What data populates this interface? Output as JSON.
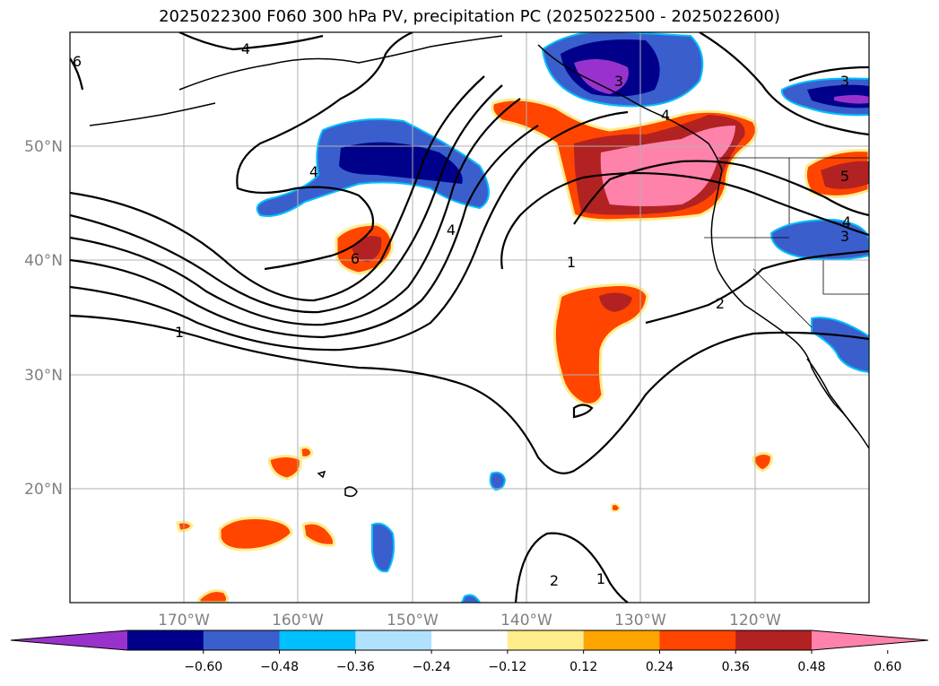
{
  "title": "2025022300 F060 300 hPa PV, precipitation PC (2025022500 - 2025022600)",
  "lat_labels": [
    "50°N",
    "40°N",
    "30°N",
    "20°N"
  ],
  "lon_labels": [
    "170°W",
    "160°W",
    "150°W",
    "140°W",
    "130°W",
    "120°W"
  ],
  "colorbar": {
    "ticks": [
      "−0.60",
      "−0.48",
      "−0.36",
      "−0.24",
      "−0.12",
      "0.12",
      "0.24",
      "0.36",
      "0.48",
      "0.60"
    ],
    "colors": [
      "#9932cc",
      "#00008b",
      "#3a5fcd",
      "#00bfff",
      "#b0e2ff",
      "#ffffff",
      "#ffec8b",
      "#ffa500",
      "#ff4500",
      "#b22222",
      "#ff82ab"
    ]
  },
  "contour_labels": [
    "4",
    "6",
    "3",
    "5",
    "4",
    "3",
    "4",
    "6",
    "1",
    "4",
    "1",
    "2",
    "1",
    "2",
    "4",
    "3"
  ],
  "colors": {
    "neg_strong": "#9932cc",
    "neg_dark": "#00008b",
    "neg_mid": "#3a5fcd",
    "neg_light": "#00bfff",
    "neg_pale": "#b0e2ff",
    "pos_pale": "#ffec8b",
    "pos_light": "#ffa500",
    "pos_mid": "#ff4500",
    "pos_dark": "#b22222",
    "pos_strong": "#ff82ab"
  }
}
